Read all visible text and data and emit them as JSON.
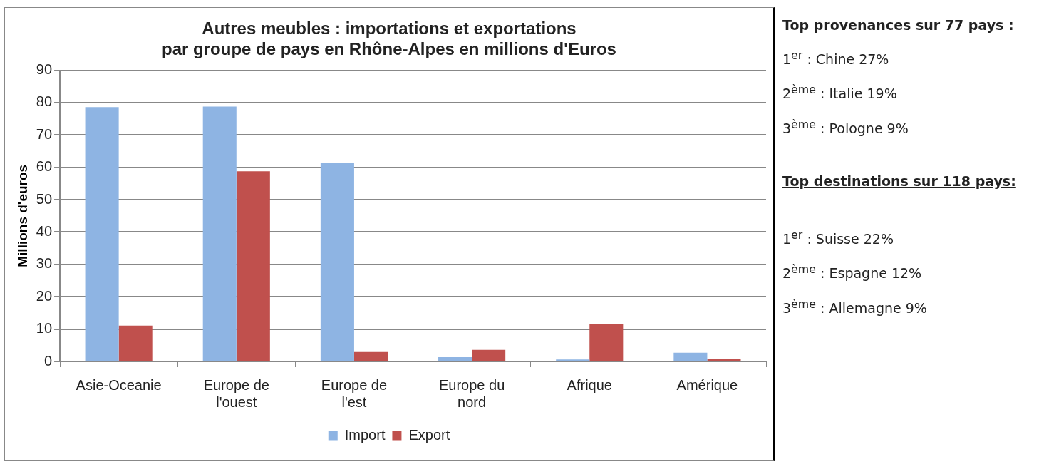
{
  "chart_data": {
    "type": "bar",
    "title": "Autres meubles : importations et exportations\npar groupe de pays en Rhône-Alpes en millions d'Euros",
    "ylabel": "Millions d'euros",
    "categories": [
      "Asie-Oceanie",
      "Europe de l'ouest",
      "Europe de l'est",
      "Europe du nord",
      "Afrique",
      "Amérique"
    ],
    "series": [
      {
        "name": "Import",
        "color": "#8eb4e3",
        "values": [
          78.6,
          78.8,
          61.4,
          1.3,
          0.6,
          2.7
        ]
      },
      {
        "name": "Export",
        "color": "#c0504d",
        "values": [
          11.1,
          58.8,
          2.9,
          3.6,
          11.7,
          0.8
        ]
      }
    ],
    "ylim": [
      0,
      90
    ],
    "yticks": [
      0,
      10,
      20,
      30,
      40,
      50,
      60,
      70,
      80,
      90
    ],
    "grid": "y",
    "legend": "bottom",
    "annotations": [
      "Top provenances sur 77 pays :",
      "1$^{er}$ : Chine 27%",
      "2$^{ème}$ : Italie 19%",
      "3$^{ème}$ : Pologne 9%",
      "Top destinations sur 118 pays:",
      "1$^{er}$ : Suisse 22%",
      "2$^{ème}$ : Espagne 12%",
      "3$^{ème}$ : Allemagne 9%"
    ]
  }
}
